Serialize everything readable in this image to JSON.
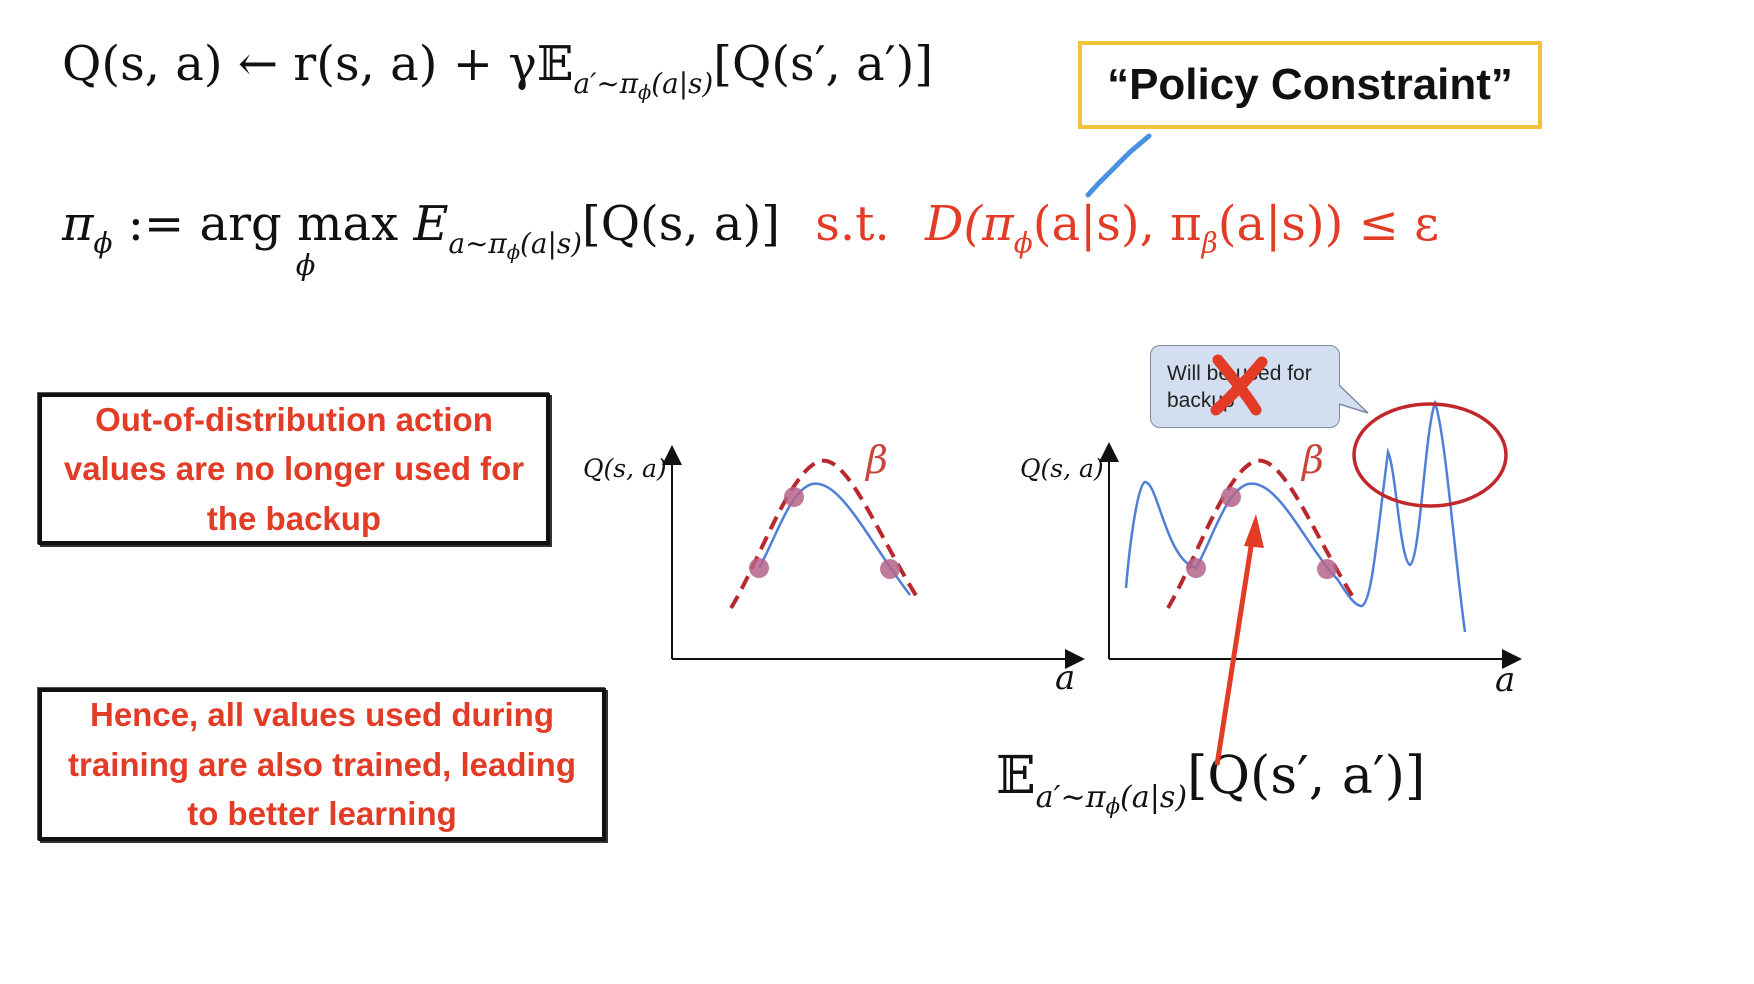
{
  "equations": {
    "bellman": {
      "lhs": "Q(s, a) ← r(s, a) + γ",
      "expect": "𝔼",
      "sub": "a′∼π",
      "subsub": "ϕ",
      "subtail": "(a|s)",
      "rhs": "[Q(s′, a′)]"
    },
    "policy": {
      "lhs": "π",
      "lhs_sub": "ϕ",
      "assign": ":= arg max",
      "argmax_var": "ϕ",
      "E": "E",
      "E_sub": "a∼π",
      "E_subsub": "ϕ",
      "E_subtail": "(a|s)",
      "objective": "[Q(s, a)]",
      "st": "s.t.",
      "constraint": "D(π",
      "c_sub1": "ϕ",
      "c_mid": "(a|s), π",
      "c_sub2": "β",
      "c_tail": "(a|s)) ≤ ε"
    },
    "target": {
      "expect": "𝔼",
      "sub": "a′∼π",
      "subsub": "ϕ",
      "subtail": "(a|s)",
      "rhs": "[Q(s′, a′)]"
    }
  },
  "callout": {
    "label": "“Policy Constraint”"
  },
  "boxes": {
    "ood": "Out-of-distribution action values are no longer used for the backup",
    "hence": "Hence, all values used during training are also trained, leading to better learning"
  },
  "speech_bubble": {
    "line1": "Will be used for",
    "line2": "backup"
  },
  "plots": {
    "left": {
      "ylabel": "Q(s, a)",
      "xlabel": "a",
      "beta": "β"
    },
    "right": {
      "ylabel": "Q(s, a)",
      "xlabel": "a",
      "beta": "β"
    }
  },
  "colors": {
    "red": "#e23b26",
    "blue": "#4f7fd6",
    "dash": "#b8282c",
    "dot": "#b5648a",
    "gold": "#f0c43a",
    "bubble": "#d3dff0"
  }
}
